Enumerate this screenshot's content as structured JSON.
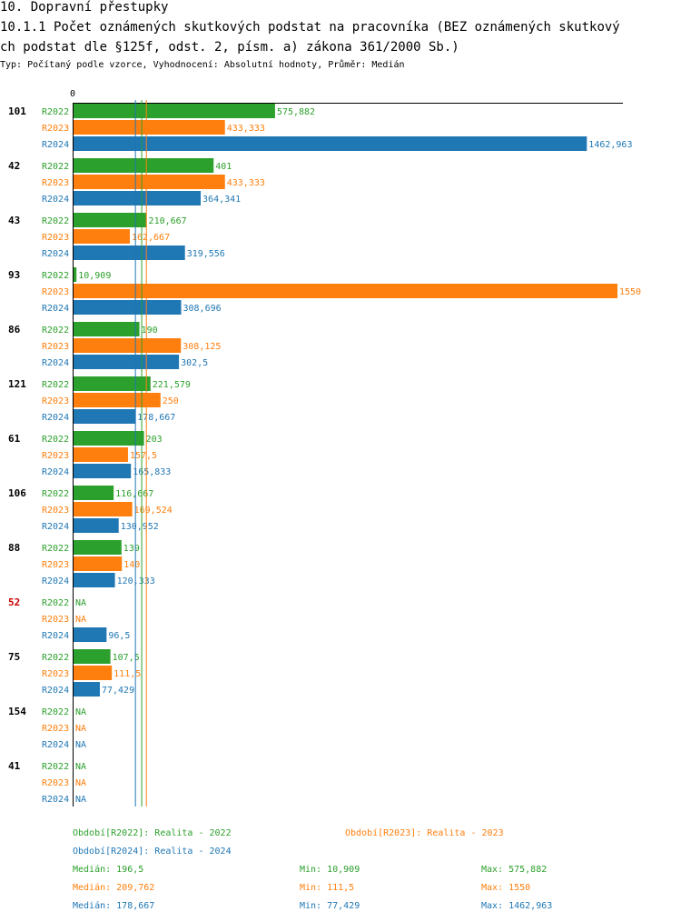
{
  "header": {
    "title": "10. Dopravní přestupky",
    "subtitle_line1": "10.1.1 Počet oznámených skutkových podstat na pracovníka (BEZ oznámených skutkový",
    "subtitle_line2": "ch podstat dle §125f, odst. 2, písm. a) zákona 361/2000 Sb.)",
    "type_line": "Typ: Počítaný podle vzorce, Vyhodnocení: Absolutní hodnoty, Průměr: Medián"
  },
  "chart_data": {
    "type": "bar",
    "orientation": "horizontal",
    "axis_zero_label": "0",
    "xlim": [
      0,
      1550
    ],
    "series": [
      {
        "name": "R2022",
        "color": "#2ca02c",
        "legend": "Období[R2022]: Realita - 2022",
        "median_label": "Medián: 196,5",
        "min_label": "Min: 10,909",
        "max_label": "Max: 575,882",
        "median": 196.5
      },
      {
        "name": "R2023",
        "color": "#ff7f0e",
        "legend": "Období[R2023]: Realita - 2023",
        "median_label": "Medián: 209,762",
        "min_label": "Min: 111,5",
        "max_label": "Max: 1550",
        "median": 209.762
      },
      {
        "name": "R2024",
        "color": "#1f77b4",
        "legend": "Období[R2024]: Realita - 2024",
        "median_label": "Medián: 178,667",
        "min_label": "Min: 77,429",
        "max_label": "Max: 1462,963",
        "median": 178.667
      }
    ],
    "groups": [
      {
        "id": "101",
        "highlight": false,
        "values": [
          575.882,
          433.333,
          1462.963
        ],
        "labels": [
          "575,882",
          "433,333",
          "1462,963"
        ]
      },
      {
        "id": "42",
        "highlight": false,
        "values": [
          401,
          433.333,
          364.341
        ],
        "labels": [
          "401",
          "433,333",
          "364,341"
        ]
      },
      {
        "id": "43",
        "highlight": false,
        "values": [
          210.667,
          162.667,
          319.556
        ],
        "labels": [
          "210,667",
          "162,667",
          "319,556"
        ]
      },
      {
        "id": "93",
        "highlight": false,
        "values": [
          10.909,
          1550,
          308.696
        ],
        "labels": [
          "10,909",
          "1550",
          "308,696"
        ]
      },
      {
        "id": "86",
        "highlight": false,
        "values": [
          190,
          308.125,
          302.5
        ],
        "labels": [
          "190",
          "308,125",
          "302,5"
        ]
      },
      {
        "id": "121",
        "highlight": false,
        "values": [
          221.579,
          250,
          178.667
        ],
        "labels": [
          "221,579",
          "250",
          "178,667"
        ]
      },
      {
        "id": "61",
        "highlight": false,
        "values": [
          203,
          157.5,
          165.833
        ],
        "labels": [
          "203",
          "157,5",
          "165,833"
        ]
      },
      {
        "id": "106",
        "highlight": false,
        "values": [
          116.667,
          169.524,
          130.952
        ],
        "labels": [
          "116,667",
          "169,524",
          "130,952"
        ]
      },
      {
        "id": "88",
        "highlight": false,
        "values": [
          139,
          140,
          120.333
        ],
        "labels": [
          "139",
          "140",
          "120,333"
        ]
      },
      {
        "id": "52",
        "highlight": true,
        "values": [
          null,
          null,
          96.5
        ],
        "labels": [
          "NA",
          "NA",
          "96,5"
        ]
      },
      {
        "id": "75",
        "highlight": false,
        "values": [
          107.5,
          111.5,
          77.429
        ],
        "labels": [
          "107,5",
          "111,5",
          "77,429"
        ]
      },
      {
        "id": "154",
        "highlight": false,
        "values": [
          null,
          null,
          null
        ],
        "labels": [
          "NA",
          "NA",
          "NA"
        ]
      },
      {
        "id": "41",
        "highlight": false,
        "values": [
          null,
          null,
          null
        ],
        "labels": [
          "NA",
          "NA",
          "NA"
        ]
      }
    ]
  }
}
